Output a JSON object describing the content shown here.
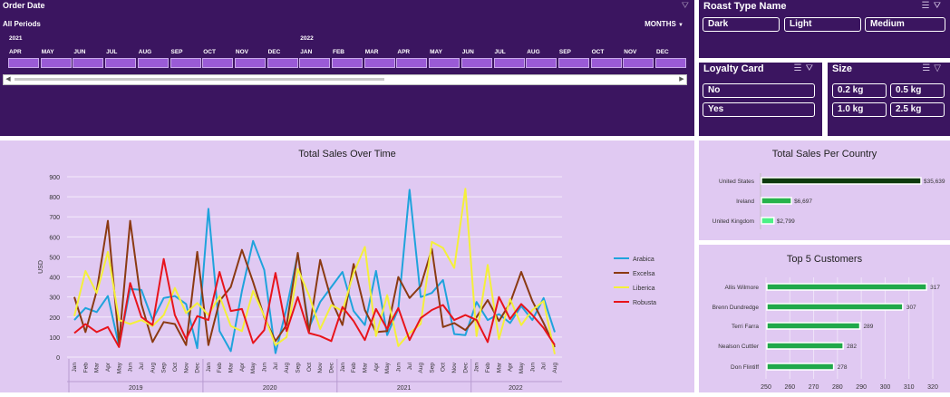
{
  "timeline": {
    "title": "Order Date",
    "period_label": "All Periods",
    "level_label": "MONTHS",
    "years": [
      "2021",
      "2022"
    ],
    "months": [
      "APR",
      "MAY",
      "JUN",
      "JUL",
      "AUG",
      "SEP",
      "OCT",
      "NOV",
      "DEC",
      "JAN",
      "FEB",
      "MAR",
      "APR",
      "MAY",
      "JUN",
      "JUL",
      "AUG",
      "SEP",
      "OCT",
      "NOV",
      "DEC"
    ]
  },
  "roast_slicer": {
    "title": "Roast Type Name",
    "items": [
      "Dark",
      "Light",
      "Medium"
    ]
  },
  "loyalty_slicer": {
    "title": "Loyalty Card",
    "items": [
      "No",
      "Yes"
    ]
  },
  "size_slicer": {
    "title": "Size",
    "items": [
      "0.2 kg",
      "0.5 kg",
      "1.0 kg",
      "2.5 kg"
    ]
  },
  "chart_data": [
    {
      "type": "line",
      "title": "Total Sales Over Time",
      "ylabel": "USD",
      "ylim": [
        0,
        900
      ],
      "yticks": [
        0,
        100,
        200,
        300,
        400,
        500,
        600,
        700,
        800,
        900
      ],
      "x": [
        "Jan",
        "Feb",
        "Mar",
        "Apr",
        "May",
        "Jun",
        "Jul",
        "Aug",
        "Sep",
        "Oct",
        "Nov",
        "Dec",
        "Jan",
        "Feb",
        "Mar",
        "Apr",
        "May",
        "Jun",
        "Jul",
        "Aug",
        "Sep",
        "Oct",
        "Nov",
        "Dec",
        "Jan",
        "Feb",
        "Mar",
        "Apr",
        "May",
        "Jun",
        "Jul",
        "Aug",
        "Sep",
        "Oct",
        "Nov",
        "Dec",
        "Jan",
        "Feb",
        "Mar",
        "Apr",
        "May",
        "Jun",
        "Jul",
        "Aug"
      ],
      "year_groups": [
        {
          "label": "2019",
          "count": 12
        },
        {
          "label": "2020",
          "count": 12
        },
        {
          "label": "2021",
          "count": 12
        },
        {
          "label": "2022",
          "count": 8
        }
      ],
      "legend_position": "right",
      "series": [
        {
          "name": "Arabica",
          "color": "#1fa3dc",
          "values": [
            185,
            245,
            225,
            305,
            55,
            340,
            335,
            185,
            295,
            305,
            265,
            45,
            740,
            130,
            30,
            330,
            580,
            435,
            20,
            245,
            515,
            145,
            275,
            350,
            425,
            230,
            160,
            430,
            110,
            240,
            835,
            300,
            320,
            385,
            115,
            110,
            275,
            185,
            215,
            170,
            255,
            185,
            295,
            125
          ]
        },
        {
          "name": "Excelsa",
          "color": "#8b3a12",
          "values": [
            300,
            125,
            330,
            680,
            70,
            680,
            265,
            75,
            175,
            165,
            60,
            525,
            60,
            280,
            350,
            535,
            375,
            200,
            80,
            160,
            520,
            125,
            485,
            285,
            160,
            465,
            235,
            125,
            130,
            400,
            295,
            355,
            540,
            150,
            170,
            135,
            200,
            285,
            180,
            270,
            425,
            280,
            170,
            50
          ]
        },
        {
          "name": "Liberica",
          "color": "#f4f03a",
          "values": [
            205,
            430,
            320,
            525,
            185,
            165,
            185,
            155,
            210,
            345,
            220,
            270,
            210,
            305,
            155,
            130,
            330,
            205,
            60,
            100,
            440,
            310,
            140,
            260,
            230,
            420,
            550,
            105,
            310,
            55,
            120,
            165,
            575,
            545,
            445,
            840,
            105,
            460,
            90,
            290,
            160,
            235,
            280,
            15
          ]
        },
        {
          "name": "Robusta",
          "color": "#e8141c",
          "values": [
            120,
            165,
            125,
            150,
            50,
            370,
            200,
            160,
            490,
            210,
            90,
            205,
            185,
            425,
            230,
            240,
            70,
            135,
            420,
            130,
            300,
            120,
            105,
            80,
            250,
            180,
            85,
            240,
            140,
            245,
            85,
            195,
            235,
            260,
            185,
            210,
            185,
            75,
            300,
            190,
            265,
            210,
            145,
            60
          ]
        }
      ]
    },
    {
      "type": "bar",
      "orientation": "horizontal",
      "title": "Total Sales Per Country",
      "categories": [
        "United States",
        "Ireland",
        "United Kingdom"
      ],
      "values": [
        35639,
        6697,
        2799
      ],
      "value_labels": [
        "$35,639",
        "$6,697",
        "$2,799"
      ],
      "colors": [
        "#0e3a0e",
        "#27b34b",
        "#4cf085"
      ]
    },
    {
      "type": "bar",
      "orientation": "horizontal",
      "title": "Top 5 Customers",
      "categories": [
        "Allis Wilmore",
        "Brenn Dundredge",
        "Terri Farra",
        "Nealson Cuttler",
        "Don Flintiff"
      ],
      "values": [
        317,
        307,
        289,
        282,
        278
      ],
      "xlim": [
        250,
        320
      ],
      "xticks": [
        250,
        260,
        270,
        280,
        290,
        300,
        310,
        320
      ],
      "color": "#20a84a"
    }
  ]
}
